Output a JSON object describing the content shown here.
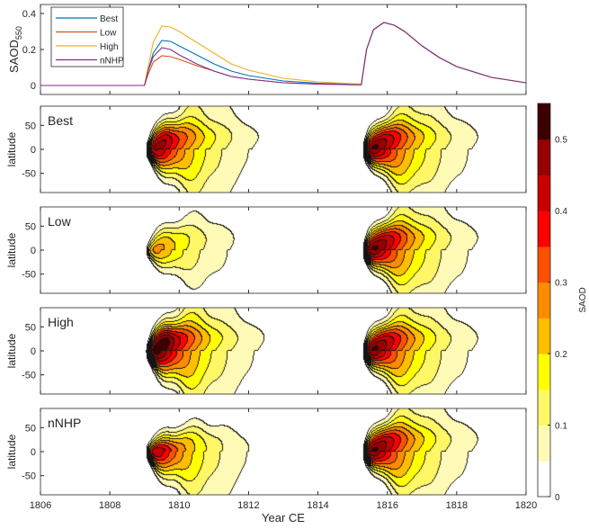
{
  "chart_data": [
    {
      "type": "line",
      "ylabel": "SAOD",
      "ylabel_sub": "550",
      "xlim": [
        1806,
        1820
      ],
      "ylim": [
        -0.05,
        0.45
      ],
      "yticks": [
        "0",
        "0.2",
        "0.4"
      ],
      "legend_placement": "top-left",
      "x": [
        1806,
        1809,
        1809.1,
        1809.25,
        1809.5,
        1809.75,
        1810,
        1810.5,
        1811,
        1811.5,
        1812,
        1813,
        1814,
        1815,
        1815.25,
        1815.4,
        1815.6,
        1815.9,
        1816.2,
        1816.5,
        1817,
        1817.5,
        1818,
        1819,
        1820
      ],
      "series": [
        {
          "name": "Best",
          "color": "#0072BD",
          "values": [
            0,
            0,
            0.08,
            0.18,
            0.25,
            0.245,
            0.22,
            0.17,
            0.12,
            0.08,
            0.055,
            0.025,
            0.012,
            0.006,
            0.005,
            0.2,
            0.31,
            0.35,
            0.335,
            0.3,
            0.22,
            0.155,
            0.105,
            0.045,
            0.015
          ]
        },
        {
          "name": "Low",
          "color": "#D95319",
          "values": [
            0,
            0,
            0.06,
            0.13,
            0.165,
            0.16,
            0.145,
            0.11,
            0.08,
            0.05,
            0.035,
            0.015,
            0.008,
            0.004,
            0.004,
            0.2,
            0.31,
            0.35,
            0.335,
            0.3,
            0.22,
            0.155,
            0.105,
            0.045,
            0.015
          ]
        },
        {
          "name": "High",
          "color": "#EDB120",
          "values": [
            0,
            0,
            0.1,
            0.24,
            0.33,
            0.325,
            0.3,
            0.24,
            0.18,
            0.12,
            0.085,
            0.04,
            0.02,
            0.01,
            0.008,
            0.2,
            0.31,
            0.35,
            0.335,
            0.3,
            0.22,
            0.155,
            0.105,
            0.045,
            0.015
          ]
        },
        {
          "name": "nNHP",
          "color": "#7E2F8E",
          "values": [
            0,
            0,
            0.08,
            0.16,
            0.21,
            0.2,
            0.17,
            0.12,
            0.08,
            0.05,
            0.035,
            0.015,
            0.008,
            0.004,
            0.004,
            0.2,
            0.31,
            0.35,
            0.335,
            0.3,
            0.22,
            0.155,
            0.105,
            0.045,
            0.015
          ]
        }
      ]
    },
    {
      "type": "heatmap",
      "ylabel": "latitude",
      "xlabel": "Year CE",
      "xlim": [
        1806,
        1820
      ],
      "ylim": [
        -90,
        90
      ],
      "xticks": [
        "1806",
        "1808",
        "1810",
        "1812",
        "1814",
        "1816",
        "1818",
        "1820"
      ],
      "yticks": [
        "-50",
        "0",
        "50"
      ],
      "panels": [
        {
          "title": "Best",
          "eruptions": [
            {
              "year": 1809.05,
              "peak": 0.52,
              "nh_spread": 1.0,
              "sh_spread": 1.0
            },
            {
              "year": 1815.3,
              "peak": 0.56,
              "nh_spread": 1.0,
              "sh_spread": 1.0
            }
          ]
        },
        {
          "title": "Low",
          "eruptions": [
            {
              "year": 1809.05,
              "peak": 0.3,
              "nh_spread": 0.75,
              "sh_spread": 0.75
            },
            {
              "year": 1815.3,
              "peak": 0.56,
              "nh_spread": 1.0,
              "sh_spread": 1.0
            }
          ]
        },
        {
          "title": "High",
          "eruptions": [
            {
              "year": 1809.05,
              "peak": 0.6,
              "nh_spread": 1.05,
              "sh_spread": 1.05
            },
            {
              "year": 1815.3,
              "peak": 0.56,
              "nh_spread": 1.0,
              "sh_spread": 1.0
            }
          ]
        },
        {
          "title": "nNHP",
          "eruptions": [
            {
              "year": 1809.05,
              "peak": 0.5,
              "nh_spread": 0.45,
              "sh_spread": 1.0
            },
            {
              "year": 1815.3,
              "peak": 0.56,
              "nh_spread": 1.0,
              "sh_spread": 1.0
            }
          ]
        }
      ],
      "colorbar": {
        "label": "SAOD",
        "levels": [
          0,
          0.05,
          0.1,
          0.15,
          0.2,
          0.25,
          0.3,
          0.35,
          0.4,
          0.45,
          0.5,
          0.55
        ],
        "ticks": [
          "0",
          "0.1",
          "0.2",
          "0.3",
          "0.4",
          "0.5"
        ],
        "colors": [
          "#ffffff",
          "#fffbb6",
          "#fff766",
          "#ffff00",
          "#ffbf00",
          "#ff8c00",
          "#ff5000",
          "#ff0000",
          "#c80000",
          "#960000",
          "#3c0000"
        ]
      }
    }
  ]
}
